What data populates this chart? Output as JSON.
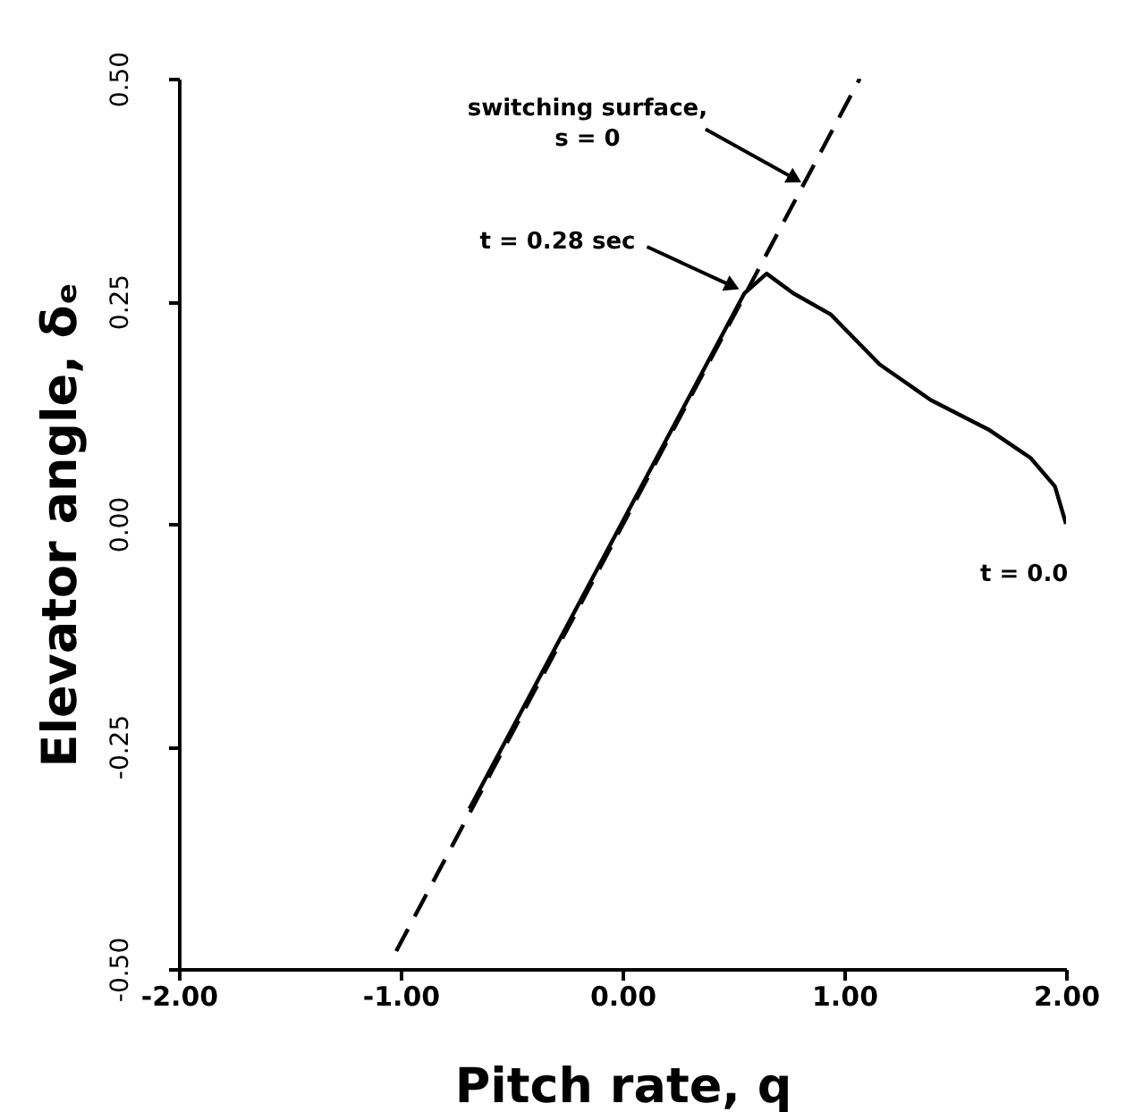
{
  "chart_data": {
    "type": "line",
    "xlabel": "Pitch rate, q",
    "ylabel": "Elevator angle, δₑ",
    "xlim": [
      -2,
      2
    ],
    "ylim": [
      -0.5,
      0.5
    ],
    "xticks": [
      {
        "value": -2,
        "label": "-2.00"
      },
      {
        "value": -1,
        "label": "-1.00"
      },
      {
        "value": 0,
        "label": "0.00"
      },
      {
        "value": 1,
        "label": "1.00"
      },
      {
        "value": 2,
        "label": "2.00"
      }
    ],
    "yticks": [
      {
        "value": -0.5,
        "label": "-0.50"
      },
      {
        "value": -0.25,
        "label": "-0.25"
      },
      {
        "value": 0,
        "label": "0.00"
      },
      {
        "value": 0.25,
        "label": "0.25"
      },
      {
        "value": 0.5,
        "label": "0.50"
      }
    ],
    "grid": false,
    "series": [
      {
        "color": "#000000",
        "line_style": "dashed",
        "x": [
          -1.02,
          1.07
        ],
        "values": [
          -0.48,
          0.5
        ]
      },
      {
        "color": "#000000",
        "line_style": "solid",
        "x": [
          2.0,
          1.95,
          1.84,
          1.65,
          1.39,
          1.16,
          0.94,
          0.77,
          0.65,
          0.55,
          -0.69
        ],
        "values": [
          0.0,
          0.042,
          0.074,
          0.106,
          0.139,
          0.179,
          0.235,
          0.259,
          0.281,
          0.259,
          -0.32
        ]
      }
    ],
    "annotations": [
      {
        "text": "switching surface,\ns = 0",
        "x": 0.81,
        "y": 0.383
      },
      {
        "text": "t = 0.28 sec",
        "x": 0.53,
        "y": 0.263
      },
      {
        "text": "t = 0.0",
        "x": 2.0,
        "y": 0.0
      }
    ]
  }
}
